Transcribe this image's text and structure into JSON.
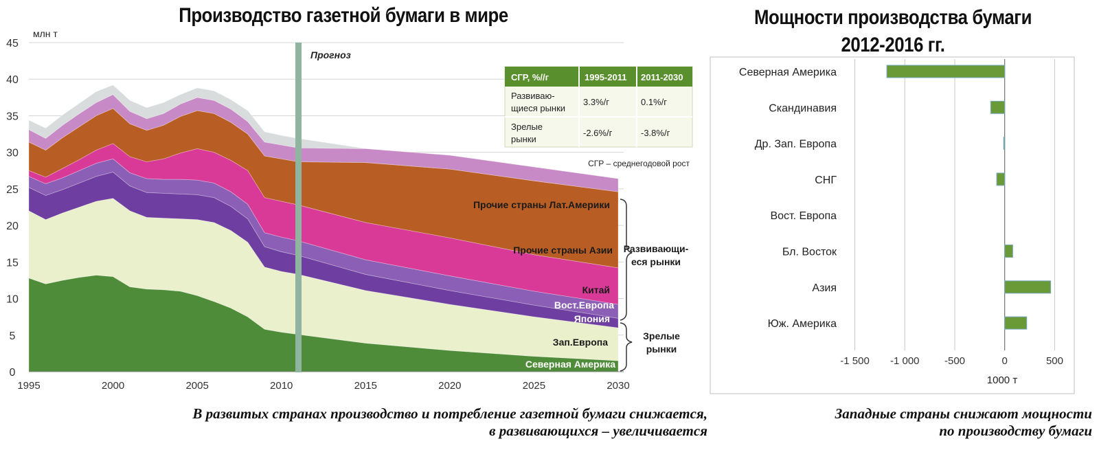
{
  "left": {
    "title": "Производство газетной бумаги в мире",
    "unit_label": "млн т",
    "forecast_label": "Прогноз",
    "cagr_table": {
      "headers": [
        "СГР, %//г",
        "1995-2011",
        "2011-2030"
      ],
      "rows": [
        {
          "label_line1": "Развиваю-",
          "label_line2": "щиеся рынки",
          "v1": "3.3%/г",
          "v2": "0.1%/г"
        },
        {
          "label_line1": "Зрелые",
          "label_line2": "рынки",
          "v1": "-2.6%/г",
          "v2": "-3.8%/г"
        }
      ],
      "note": "СГР – среднегодовой рост"
    },
    "group_developing": {
      "line1": "Развивающи-",
      "line2": "еся рынки"
    },
    "group_mature": {
      "line1": "Зрелые",
      "line2": "рынки"
    },
    "caption_line1": "В развитых странах производство и потребление газетной бумаги снижается,",
    "caption_line2": "в развивающихся – увеличивается"
  },
  "right": {
    "title_line1": "Мощности производства бумаги",
    "title_line2": "2012-2016 гг.",
    "caption_line1": "Западные страны снижают мощности",
    "caption_line2": "по производству бумаги"
  },
  "colors": {
    "north_america": "#4f8c3a",
    "west_europe": "#eaf0cc",
    "japan": "#6e3fa0",
    "east_europe": "#8a5fb5",
    "china": "#d93a98",
    "other_asia": "#b85e24",
    "other_latam": "#c88ac6",
    "top_grey": "#d8dcdc",
    "bar": "#6a9a38",
    "forecast_line": "#8fb5a0",
    "table_header": "#5a8f2e"
  },
  "chart_data": [
    {
      "type": "area",
      "stacked": true,
      "title": "Производство газетной бумаги в мире",
      "ylabel": "млн т",
      "ylim": [
        0,
        45
      ],
      "xlim": [
        1995,
        2030
      ],
      "x": [
        1995,
        1996,
        1997,
        1998,
        1999,
        2000,
        2001,
        2002,
        2003,
        2004,
        2005,
        2006,
        2007,
        2008,
        2009,
        2010,
        2011,
        2015,
        2020,
        2025,
        2030
      ],
      "x_ticks": [
        1995,
        2000,
        2005,
        2010,
        2015,
        2020,
        2025,
        2030
      ],
      "y_ticks": [
        0,
        5,
        10,
        15,
        20,
        25,
        30,
        35,
        40,
        45
      ],
      "forecast_start": 2011,
      "grid": true,
      "series": [
        {
          "name": "Северная Америка",
          "values": [
            12.8,
            12.0,
            12.5,
            12.9,
            13.2,
            13.0,
            11.6,
            11.3,
            11.2,
            11.0,
            10.4,
            9.6,
            8.7,
            7.5,
            5.8,
            5.4,
            5.1,
            3.9,
            2.9,
            2.1,
            1.5
          ]
        },
        {
          "name": "Зап.Европа",
          "values": [
            9.2,
            8.8,
            9.2,
            9.6,
            10.1,
            10.7,
            10.4,
            9.8,
            9.8,
            9.9,
            10.4,
            10.8,
            10.6,
            10.2,
            8.5,
            8.3,
            8.2,
            7.2,
            6.3,
            5.4,
            4.5
          ]
        },
        {
          "name": "Япония",
          "values": [
            3.2,
            3.3,
            3.2,
            3.3,
            3.4,
            3.6,
            3.4,
            3.4,
            3.4,
            3.4,
            3.4,
            3.4,
            3.3,
            3.2,
            2.8,
            2.7,
            2.6,
            2.2,
            1.9,
            1.6,
            1.3
          ]
        },
        {
          "name": "Вост.Европа",
          "values": [
            1.5,
            1.6,
            1.6,
            1.7,
            1.8,
            1.8,
            1.8,
            1.9,
            1.9,
            2.0,
            2.0,
            2.0,
            2.0,
            2.0,
            1.9,
            2.0,
            2.0,
            2.0,
            2.0,
            1.9,
            1.9
          ]
        },
        {
          "name": "Китай",
          "values": [
            0.8,
            0.9,
            1.3,
            1.5,
            1.8,
            2.1,
            2.2,
            2.3,
            2.8,
            3.6,
            4.3,
            4.2,
            4.3,
            4.6,
            4.8,
            4.9,
            4.9,
            5.1,
            5.2,
            5.0,
            5.0
          ]
        },
        {
          "name": "Прочие страны Азии",
          "values": [
            3.9,
            3.7,
            4.2,
            4.5,
            4.7,
            4.8,
            4.5,
            4.3,
            4.6,
            5.0,
            5.2,
            5.3,
            5.2,
            5.0,
            5.7,
            5.8,
            5.9,
            8.2,
            9.4,
            10.1,
            10.4
          ]
        },
        {
          "name": "Прочие страны Лат.Америки",
          "values": [
            1.7,
            1.6,
            1.7,
            1.8,
            1.8,
            1.9,
            1.7,
            1.6,
            1.6,
            1.7,
            1.8,
            1.8,
            1.8,
            1.7,
            1.9,
            1.9,
            1.9,
            1.9,
            1.9,
            1.9,
            1.8
          ]
        },
        {
          "name": "",
          "values": [
            1.3,
            1.4,
            1.4,
            1.4,
            1.5,
            1.3,
            1.5,
            1.5,
            1.5,
            1.3,
            1.3,
            1.3,
            1.3,
            1.5,
            1.4,
            1.3,
            1.3,
            0.0,
            0.0,
            0.0,
            0.0
          ]
        }
      ]
    },
    {
      "type": "bar",
      "orientation": "horizontal",
      "title": "Мощности производства бумаги 2012-2016 гг.",
      "xlabel": "1000 т",
      "xlim": [
        -1600,
        600
      ],
      "x_ticks": [
        -1500,
        -1000,
        -500,
        0,
        500
      ],
      "x_tick_labels": [
        "-1 500",
        "-1 000",
        "-500",
        "0",
        "500"
      ],
      "grid": true,
      "categories": [
        "Северная Америка",
        "Скандинавия",
        "Др. Зап. Европа",
        "СНГ",
        "Вост. Европа",
        "Бл. Восток",
        "Азия",
        "Юж. Америка"
      ],
      "values": [
        -1180,
        -140,
        -10,
        -80,
        0,
        80,
        460,
        220
      ]
    }
  ]
}
